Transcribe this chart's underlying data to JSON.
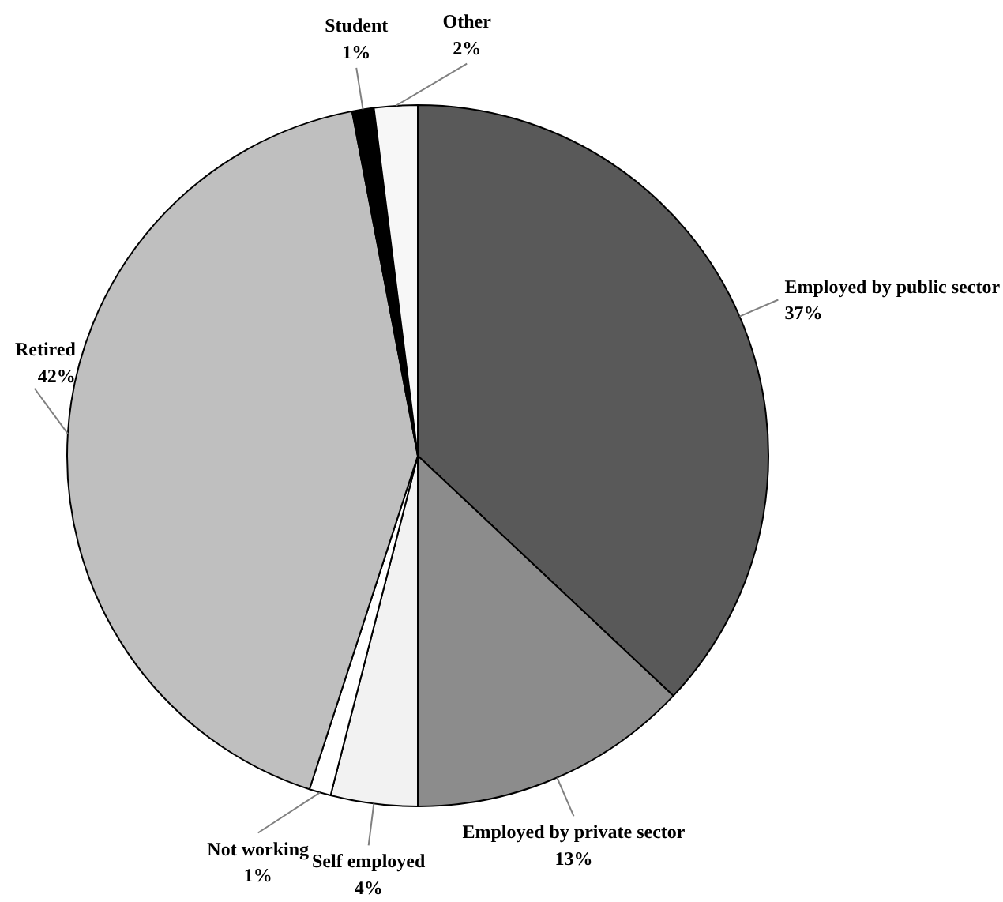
{
  "chart_data": {
    "type": "pie",
    "categories": [
      "Employed by public sector",
      "Employed by private sector",
      "Self employed",
      "Not working",
      "Retired",
      "Student",
      "Other"
    ],
    "values": [
      37,
      13,
      4,
      1,
      42,
      1,
      2
    ],
    "value_labels": [
      "37%",
      "13%",
      "4%",
      "1%",
      "42%",
      "1%",
      "2%"
    ],
    "colors": [
      "#595959",
      "#8c8c8c",
      "#f2f2f2",
      "#ffffff",
      "#bfbfbf",
      "#000000",
      "#f7f7f7"
    ]
  }
}
